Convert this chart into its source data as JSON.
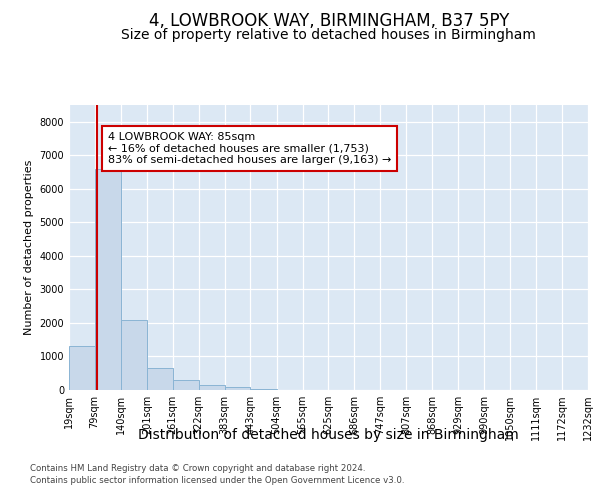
{
  "title": "4, LOWBROOK WAY, BIRMINGHAM, B37 5PY",
  "subtitle": "Size of property relative to detached houses in Birmingham",
  "xlabel": "Distribution of detached houses by size in Birmingham",
  "ylabel": "Number of detached properties",
  "footer_line1": "Contains HM Land Registry data © Crown copyright and database right 2024.",
  "footer_line2": "Contains public sector information licensed under the Open Government Licence v3.0.",
  "bar_edges": [
    19,
    79,
    140,
    201,
    261,
    322,
    383,
    443,
    504,
    565,
    625,
    686,
    747,
    807,
    868,
    929,
    990,
    1050,
    1111,
    1172,
    1232
  ],
  "bar_heights": [
    1300,
    6600,
    2100,
    650,
    300,
    150,
    80,
    30,
    5,
    1,
    0,
    0,
    0,
    0,
    0,
    0,
    0,
    0,
    0,
    0
  ],
  "bar_color": "#c8d8ea",
  "bar_edge_color": "#8ab4d4",
  "subject_size": 85,
  "subject_label": "4 LOWBROOK WAY: 85sqm",
  "annotation_line1": "← 16% of detached houses are smaller (1,753)",
  "annotation_line2": "83% of semi-detached houses are larger (9,163) →",
  "vline_color": "#cc0000",
  "annotation_box_facecolor": "#ffffff",
  "annotation_box_edgecolor": "#cc0000",
  "ylim": [
    0,
    8500
  ],
  "yticks": [
    0,
    1000,
    2000,
    3000,
    4000,
    5000,
    6000,
    7000,
    8000
  ],
  "fig_bg_color": "#ffffff",
  "plot_bg_color": "#dce8f4",
  "grid_color": "#ffffff",
  "title_fontsize": 12,
  "subtitle_fontsize": 10,
  "ylabel_fontsize": 8,
  "xlabel_fontsize": 10,
  "tick_fontsize": 7,
  "annotation_fontsize": 8
}
